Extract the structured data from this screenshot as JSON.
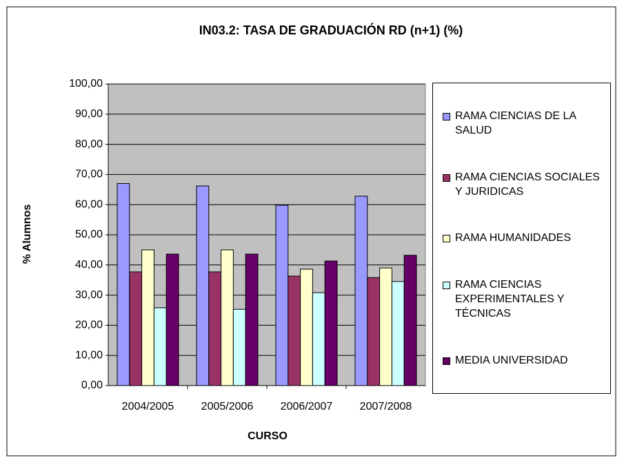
{
  "chart_data": {
    "type": "bar",
    "title": "IN03.2: TASA DE GRADUACIÓN RD (n+1)  (%)",
    "x_label": "CURSO",
    "y_label": "% Alumnos",
    "categories": [
      "2004/2005",
      "2005/2006",
      "2006/2007",
      "2007/2008"
    ],
    "series": [
      {
        "name": "RAMA CIENCIAS DE LA SALUD",
        "color": "#9999ff",
        "values": [
          67.0,
          66.2,
          59.8,
          62.8
        ]
      },
      {
        "name": "RAMA CIENCIAS SOCIALES Y JURIDICAS",
        "color": "#993366",
        "values": [
          37.7,
          37.7,
          36.3,
          35.8
        ]
      },
      {
        "name": "RAMA HUMANIDADES",
        "color": "#ffffcc",
        "values": [
          45.0,
          45.0,
          38.6,
          39.0
        ]
      },
      {
        "name": "RAMA CIENCIAS EXPERIMENTALES Y TÉCNICAS",
        "color": "#ccffff",
        "values": [
          25.8,
          25.3,
          30.8,
          34.5
        ]
      },
      {
        "name": "MEDIA UNIVERSIDAD",
        "color": "#660066",
        "values": [
          43.6,
          43.6,
          41.3,
          43.2
        ]
      }
    ],
    "ylim": [
      0,
      100
    ],
    "yticks": [
      {
        "value": 0,
        "label": "0,00"
      },
      {
        "value": 10,
        "label": "10,00"
      },
      {
        "value": 20,
        "label": "20,00"
      },
      {
        "value": 30,
        "label": "30,00"
      },
      {
        "value": 40,
        "label": "40,00"
      },
      {
        "value": 50,
        "label": "50,00"
      },
      {
        "value": 60,
        "label": "60,00"
      },
      {
        "value": 70,
        "label": "70,00"
      },
      {
        "value": 80,
        "label": "80,00"
      },
      {
        "value": 90,
        "label": "90,00"
      },
      {
        "value": 100,
        "label": "100,00"
      }
    ],
    "grid": true,
    "legend": "right"
  }
}
